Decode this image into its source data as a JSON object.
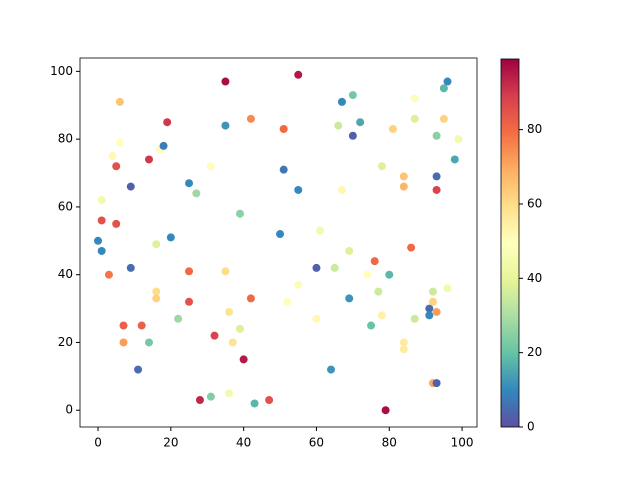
{
  "chart_data": {
    "type": "scatter",
    "colormap": "Spectral_r",
    "x": [
      0,
      1,
      1,
      1,
      3,
      4,
      5,
      5,
      6,
      6,
      7,
      7,
      9,
      9,
      11,
      12,
      14,
      14,
      16,
      16,
      16,
      17,
      18,
      19,
      20,
      22,
      25,
      25,
      25,
      27,
      28,
      31,
      31,
      32,
      35,
      35,
      35,
      36,
      36,
      37,
      39,
      39,
      40,
      42,
      42,
      43,
      47,
      50,
      51,
      51,
      52,
      55,
      55,
      55,
      60,
      60,
      61,
      64,
      65,
      66,
      67,
      67,
      69,
      69,
      70,
      70,
      72,
      74,
      75,
      76,
      77,
      78,
      78,
      79,
      80,
      81,
      84,
      84,
      84,
      84,
      86,
      87,
      87,
      87,
      91,
      91,
      92,
      92,
      92,
      93,
      93,
      93,
      93,
      93,
      95,
      95,
      96,
      96,
      98,
      99
    ],
    "y": [
      50,
      47,
      62,
      56,
      40,
      75,
      72,
      55,
      91,
      79,
      25,
      20,
      66,
      42,
      12,
      25,
      74,
      20,
      49,
      35,
      33,
      77,
      78,
      85,
      51,
      27,
      67,
      41,
      32,
      64,
      3,
      72,
      4,
      22,
      97,
      84,
      41,
      29,
      5,
      20,
      58,
      24,
      15,
      86,
      33,
      2,
      3,
      52,
      83,
      71,
      32,
      99,
      65,
      37,
      42,
      27,
      53,
      12,
      42,
      84,
      91,
      65,
      47,
      33,
      93,
      81,
      85,
      40,
      25,
      44,
      35,
      72,
      28,
      0,
      40,
      83,
      69,
      66,
      20,
      18,
      48,
      92,
      86,
      27,
      30,
      28,
      35,
      32,
      8,
      8,
      81,
      69,
      65,
      29,
      95,
      86,
      97,
      36,
      74,
      80
    ],
    "c": [
      10,
      10,
      45,
      85,
      78,
      52,
      85,
      85,
      65,
      50,
      82,
      72,
      3,
      5,
      5,
      82,
      90,
      22,
      38,
      60,
      62,
      50,
      8,
      90,
      10,
      28,
      10,
      80,
      85,
      28,
      93,
      50,
      24,
      88,
      97,
      12,
      60,
      58,
      45,
      58,
      25,
      38,
      95,
      75,
      80,
      18,
      85,
      10,
      80,
      7,
      50,
      95,
      10,
      48,
      3,
      52,
      45,
      12,
      35,
      35,
      10,
      52,
      38,
      12,
      22,
      3,
      15,
      50,
      20,
      80,
      35,
      38,
      54,
      97,
      18,
      62,
      65,
      68,
      56,
      56,
      80,
      48,
      38,
      35,
      5,
      10,
      35,
      62,
      70,
      3,
      25,
      5,
      88,
      72,
      18,
      62,
      10,
      45,
      15,
      45
    ],
    "xlim": [
      -4.95,
      104.1
    ],
    "ylim": [
      -4.95,
      103.95
    ],
    "xticks": [
      0,
      20,
      40,
      60,
      80,
      100
    ],
    "yticks": [
      0,
      20,
      40,
      60,
      80,
      100
    ],
    "clim": [
      0,
      99
    ],
    "cticks": [
      0,
      20,
      40,
      60,
      80
    ]
  }
}
